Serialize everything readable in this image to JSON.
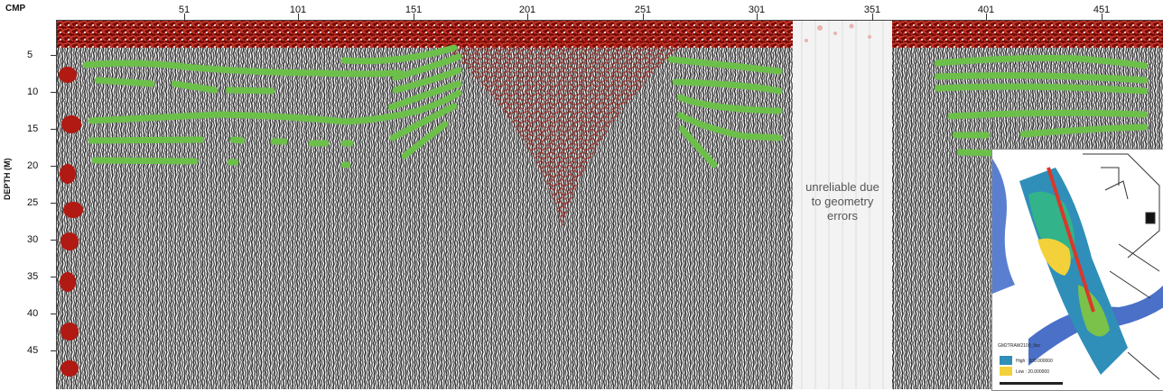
{
  "axis": {
    "x_title": "CMP",
    "y_title": "DEPTH (M)",
    "x_ticks": [
      "51",
      "101",
      "151",
      "201",
      "251",
      "301",
      "351",
      "401",
      "451"
    ],
    "y_ticks": [
      "5",
      "10",
      "15",
      "20",
      "25",
      "30",
      "35",
      "40",
      "45"
    ]
  },
  "annotation": {
    "line1": "unreliable due",
    "line2": "to geometry",
    "line3": "errors"
  },
  "inset": {
    "legend_title": "GM2TRAW2100_Iloc",
    "legend_high": "High : 100.000000",
    "legend_low": "Low : 20.000000"
  },
  "colors": {
    "horizon": "#6cc04a",
    "seismic_red": "#b01a12",
    "trace_dark": "#2a2a2a",
    "gap": "#f3f3f3",
    "profile_line": "#d9382a"
  }
}
